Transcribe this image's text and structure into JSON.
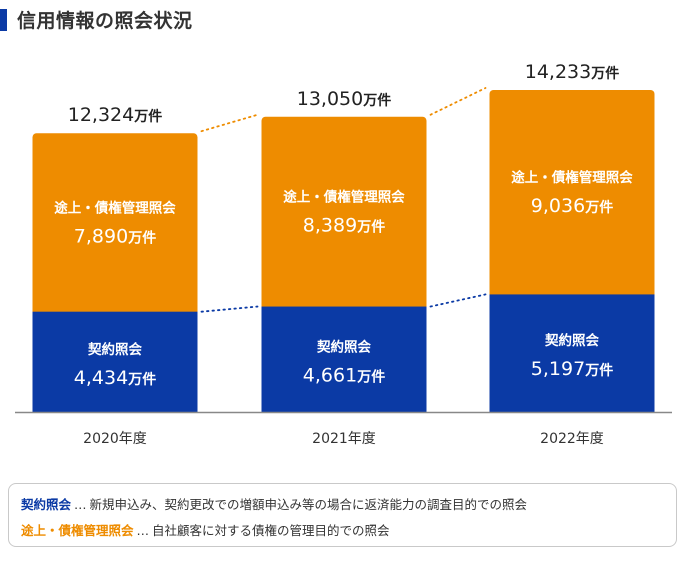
{
  "title": "信用情報の照会状況",
  "unit": "万件",
  "colors": {
    "contract": "#0b3aa5",
    "management": "#ee8c00",
    "axis": "#888888",
    "total_text": "#222222"
  },
  "chart_data": {
    "type": "bar",
    "stacked": true,
    "categories": [
      "2020年度",
      "2021年度",
      "2022年度"
    ],
    "series": [
      {
        "name": "契約照会",
        "values": [
          4434,
          4661,
          5197
        ]
      },
      {
        "name": "途上・債権管理照会",
        "values": [
          7890,
          8389,
          9036
        ]
      }
    ],
    "totals": [
      12324,
      13050,
      14233
    ],
    "value_labels": {
      "contract": [
        "4,434",
        "4,661",
        "5,197"
      ],
      "management": [
        "7,890",
        "8,389",
        "9,036"
      ],
      "totals": [
        "12,324",
        "13,050",
        "14,233"
      ]
    },
    "connector_lines": "dotted",
    "ylim": [
      0,
      14233
    ]
  },
  "legend": [
    {
      "key": "契約照会",
      "sep": "…",
      "desc": "新規申込み、契約更改での増額申込み等の場合に返済能力の調査目的での照会"
    },
    {
      "key": "途上・債権管理照会",
      "sep": "…",
      "desc": "自社顧客に対する債権の管理目的での照会"
    }
  ]
}
